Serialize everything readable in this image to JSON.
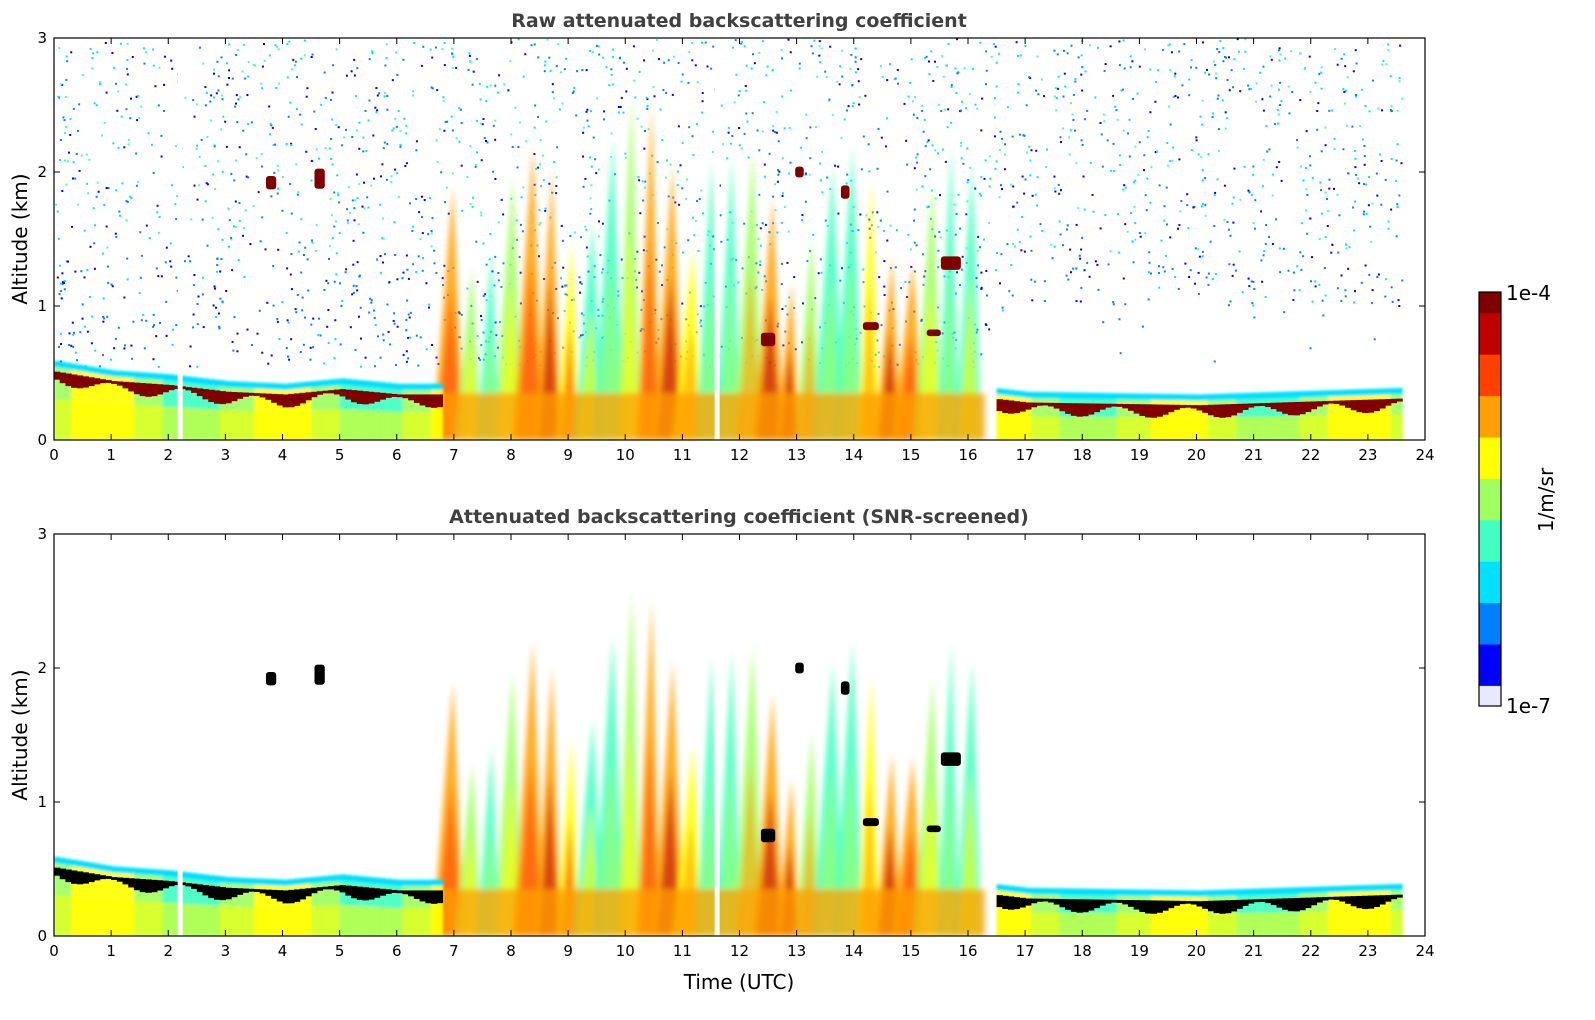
{
  "colors": {
    "jet_colormap": [
      "#e8e8ff",
      "#0000ff",
      "#0080ff",
      "#00e0ff",
      "#40ffc0",
      "#a0ff60",
      "#ffff00",
      "#ffa000",
      "#ff4000",
      "#c00000",
      "#800000"
    ],
    "saturated_top_panel": "#800000",
    "saturated_bottom_panel": "#000000",
    "title_color": "#404040"
  },
  "colorbar": {
    "label": "1/m/sr",
    "max_label": "1e-4",
    "min_label": "1e-7",
    "scale": "log",
    "range": [
      1e-07,
      0.0001
    ],
    "position": "right"
  },
  "chart_data": [
    {
      "type": "heatmap",
      "title": "Raw attenuated backscattering coefficient",
      "xlabel": "",
      "ylabel": "Altitude (km)",
      "xlim": [
        0,
        24
      ],
      "ylim": [
        0,
        3
      ],
      "xticks": [
        "0",
        "1",
        "2",
        "3",
        "4",
        "5",
        "6",
        "7",
        "8",
        "9",
        "10",
        "11",
        "12",
        "13",
        "14",
        "15",
        "16",
        "17",
        "18",
        "19",
        "20",
        "21",
        "22",
        "23",
        "24"
      ],
      "yticks": [
        "0",
        "1",
        "2",
        "3"
      ],
      "data_end_time": 23.6,
      "data_gaps_x": [
        2.2,
        11.6
      ],
      "background_noise": true,
      "boundary_layer_cloud_top_km": [
        [
          0,
          0.55
        ],
        [
          1,
          0.48
        ],
        [
          2,
          0.45
        ],
        [
          3,
          0.4
        ],
        [
          4,
          0.38
        ],
        [
          5,
          0.42
        ],
        [
          6,
          0.38
        ],
        [
          6.7,
          0.38
        ],
        [
          16.4,
          0.35
        ],
        [
          17,
          0.32
        ],
        [
          20,
          0.3
        ],
        [
          23.6,
          0.35
        ]
      ],
      "convective_region_x": [
        6.7,
        16.4
      ]
    },
    {
      "type": "heatmap",
      "title": "Attenuated backscattering coefficient (SNR-screened)",
      "xlabel": "Time (UTC)",
      "ylabel": "Altitude (km)",
      "xlim": [
        0,
        24
      ],
      "ylim": [
        0,
        3
      ],
      "xticks": [
        "0",
        "1",
        "2",
        "3",
        "4",
        "5",
        "6",
        "7",
        "8",
        "9",
        "10",
        "11",
        "12",
        "13",
        "14",
        "15",
        "16",
        "17",
        "18",
        "19",
        "20",
        "21",
        "22",
        "23",
        "24"
      ],
      "yticks": [
        "0",
        "1",
        "2",
        "3"
      ],
      "data_end_time": 23.6,
      "data_gaps_x": [
        2.2,
        11.6
      ],
      "background_noise": false,
      "boundary_layer_cloud_top_km": [
        [
          0,
          0.55
        ],
        [
          1,
          0.48
        ],
        [
          2,
          0.45
        ],
        [
          3,
          0.4
        ],
        [
          4,
          0.38
        ],
        [
          5,
          0.42
        ],
        [
          6,
          0.38
        ],
        [
          6.7,
          0.38
        ],
        [
          16.4,
          0.35
        ],
        [
          17,
          0.32
        ],
        [
          20,
          0.3
        ],
        [
          23.6,
          0.35
        ]
      ],
      "convective_region_x": [
        6.7,
        16.4
      ]
    }
  ]
}
